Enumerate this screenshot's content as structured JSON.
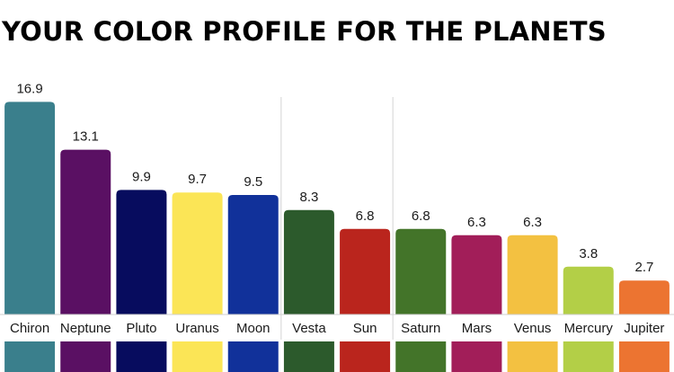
{
  "title": "YOUR COLOR PROFILE FOR THE PLANETS",
  "chart_data": {
    "type": "bar",
    "categories": [
      "Chiron",
      "Neptune",
      "Pluto",
      "Uranus",
      "Moon",
      "Vesta",
      "Sun",
      "Saturn",
      "Mars",
      "Venus",
      "Mercury",
      "Jupiter"
    ],
    "values": [
      16.9,
      13.1,
      9.9,
      9.7,
      9.5,
      8.3,
      6.8,
      6.8,
      6.3,
      6.3,
      3.8,
      2.7
    ],
    "colors": [
      "#3a7f8c",
      "#5a1063",
      "#070c5e",
      "#fbe556",
      "#11319a",
      "#2c5a2c",
      "#ba251d",
      "#437429",
      "#a21e59",
      "#f3c141",
      "#b3cf47",
      "#ec7431"
    ],
    "ylim": [
      0,
      17.5
    ],
    "grid": false,
    "group_dividers_after": [
      "Moon",
      "Sun"
    ]
  }
}
